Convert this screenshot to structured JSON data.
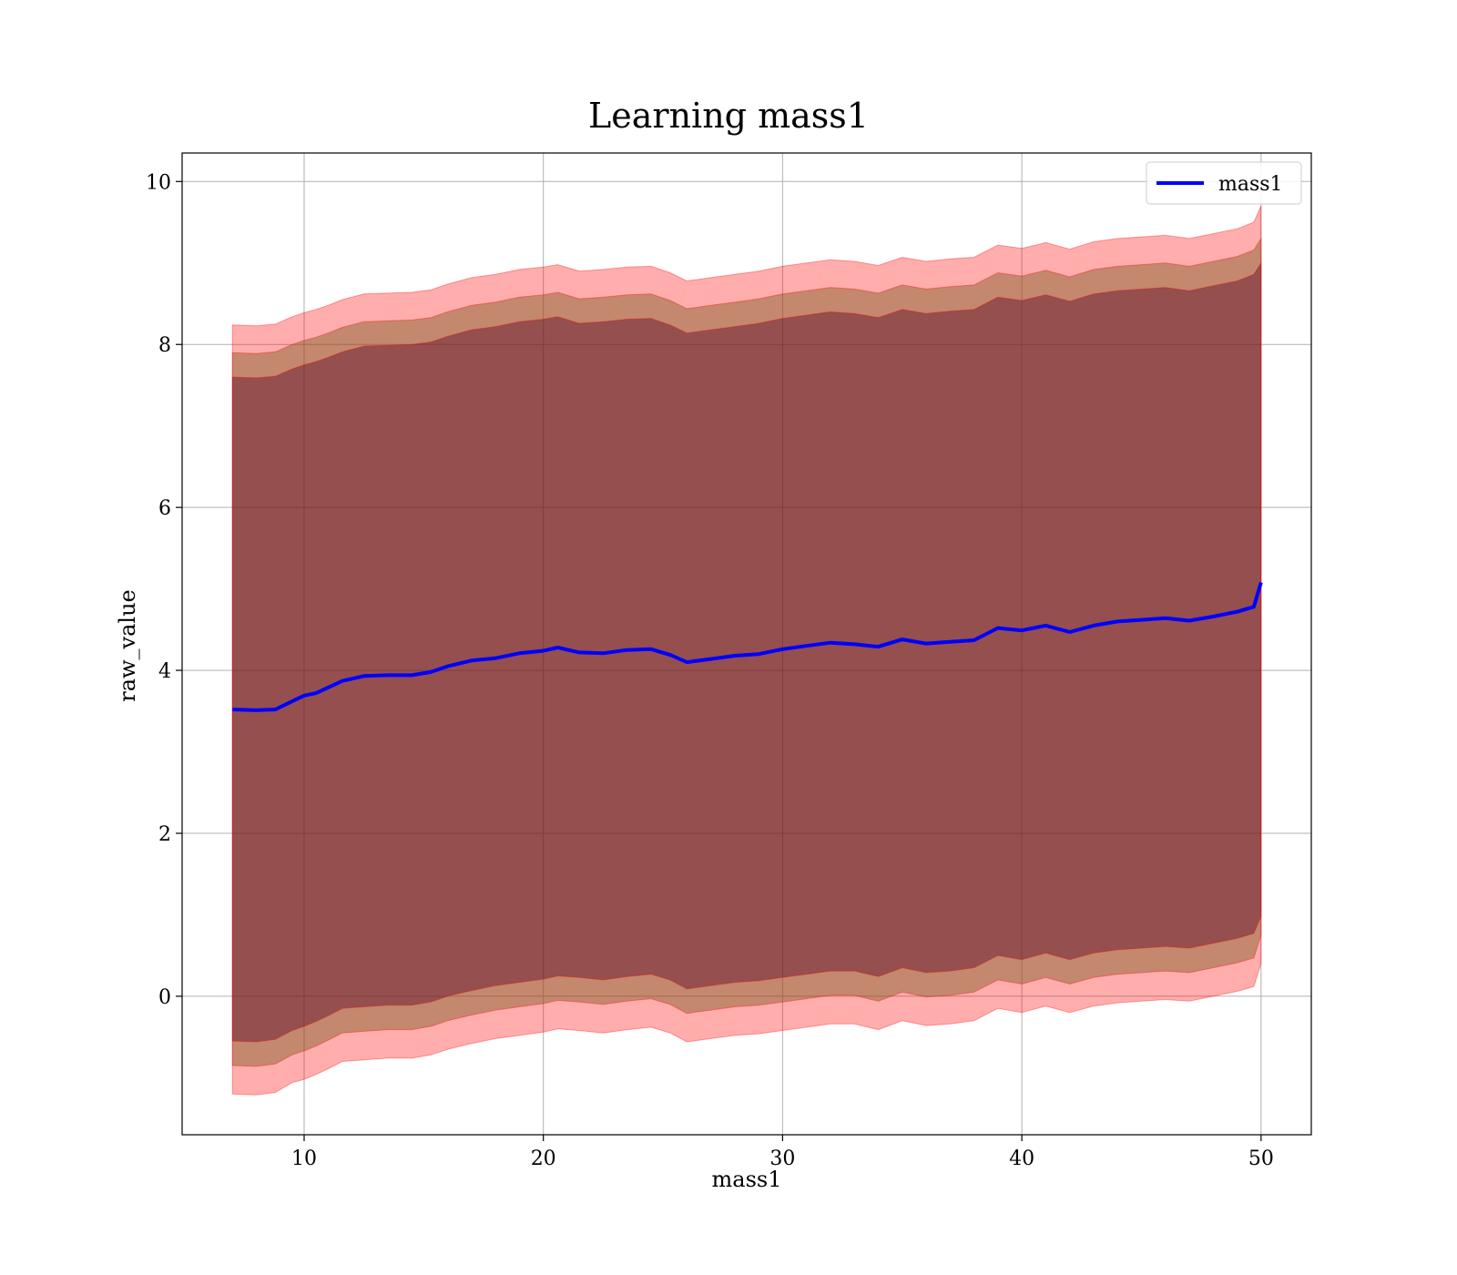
{
  "chart_data": {
    "type": "area",
    "title": "Learning mass1",
    "xlabel": "mass1",
    "ylabel": "raw_value",
    "xlim": [
      4.9,
      52.1
    ],
    "ylim": [
      -1.7,
      10.35
    ],
    "xticks": [
      10,
      20,
      30,
      40,
      50
    ],
    "yticks": [
      0,
      2,
      4,
      6,
      8,
      10
    ],
    "grid": true,
    "legend": {
      "position": "top-right",
      "entries": [
        "mass1"
      ]
    },
    "colors": {
      "line": "#0000ff",
      "band": "#ff0000",
      "band_overlap_dark": "#5a0a28",
      "band_overlap_mid": "#7a5a20"
    },
    "x": [
      7,
      8,
      8.8,
      9.5,
      10,
      10.5,
      11,
      11.6,
      12.5,
      13.5,
      14.5,
      15.3,
      16,
      17,
      18,
      19,
      20,
      20.6,
      21.5,
      22.5,
      23.5,
      24.5,
      25.3,
      26,
      27,
      28,
      29,
      30,
      31,
      32,
      33,
      34,
      35,
      36,
      37,
      38,
      39,
      40,
      41,
      42,
      43,
      44,
      45,
      46,
      47,
      48,
      49,
      49.7,
      50
    ],
    "series": [
      {
        "name": "mass1",
        "values": [
          3.52,
          3.51,
          3.52,
          3.62,
          3.69,
          3.72,
          3.79,
          3.87,
          3.93,
          3.94,
          3.94,
          3.98,
          4.05,
          4.12,
          4.15,
          4.21,
          4.24,
          4.28,
          4.22,
          4.21,
          4.25,
          4.26,
          4.19,
          4.1,
          4.14,
          4.18,
          4.2,
          4.26,
          4.3,
          4.34,
          4.32,
          4.29,
          4.38,
          4.33,
          4.35,
          4.37,
          4.52,
          4.49,
          4.55,
          4.47,
          4.55,
          4.6,
          4.62,
          4.64,
          4.61,
          4.66,
          4.72,
          4.78,
          5.08
        ]
      }
    ],
    "bands": [
      {
        "lower": [
          -1.2,
          -1.21,
          -1.18,
          -1.06,
          -1.02,
          -0.96,
          -0.89,
          -0.8,
          -0.78,
          -0.76,
          -0.76,
          -0.72,
          -0.65,
          -0.58,
          -0.52,
          -0.48,
          -0.44,
          -0.4,
          -0.42,
          -0.45,
          -0.41,
          -0.38,
          -0.45,
          -0.56,
          -0.52,
          -0.48,
          -0.46,
          -0.42,
          -0.38,
          -0.34,
          -0.34,
          -0.41,
          -0.3,
          -0.36,
          -0.34,
          -0.3,
          -0.15,
          -0.2,
          -0.12,
          -0.2,
          -0.12,
          -0.08,
          -0.06,
          -0.04,
          -0.06,
          0,
          0.06,
          0.12,
          0.4
        ],
        "upper": [
          8.24,
          8.23,
          8.25,
          8.34,
          8.39,
          8.43,
          8.48,
          8.55,
          8.62,
          8.63,
          8.64,
          8.67,
          8.74,
          8.82,
          8.86,
          8.92,
          8.95,
          8.98,
          8.9,
          8.92,
          8.95,
          8.96,
          8.88,
          8.78,
          8.82,
          8.86,
          8.9,
          8.96,
          9.0,
          9.04,
          9.02,
          8.97,
          9.07,
          9.02,
          9.05,
          9.07,
          9.22,
          9.18,
          9.25,
          9.17,
          9.26,
          9.3,
          9.32,
          9.34,
          9.3,
          9.36,
          9.42,
          9.5,
          9.7
        ]
      },
      {
        "lower": [
          -0.85,
          -0.86,
          -0.83,
          -0.72,
          -0.67,
          -0.61,
          -0.54,
          -0.45,
          -0.43,
          -0.41,
          -0.41,
          -0.37,
          -0.3,
          -0.23,
          -0.17,
          -0.13,
          -0.09,
          -0.05,
          -0.07,
          -0.1,
          -0.06,
          -0.03,
          -0.1,
          -0.21,
          -0.17,
          -0.13,
          -0.11,
          -0.07,
          -0.03,
          0.01,
          0.01,
          -0.06,
          0.05,
          -0.01,
          0.01,
          0.05,
          0.2,
          0.15,
          0.23,
          0.15,
          0.23,
          0.27,
          0.29,
          0.31,
          0.29,
          0.35,
          0.41,
          0.47,
          0.75
        ],
        "upper": [
          7.9,
          7.89,
          7.91,
          8.0,
          8.05,
          8.09,
          8.14,
          8.21,
          8.28,
          8.29,
          8.3,
          8.33,
          8.4,
          8.48,
          8.52,
          8.58,
          8.61,
          8.64,
          8.56,
          8.58,
          8.61,
          8.62,
          8.54,
          8.44,
          8.48,
          8.52,
          8.56,
          8.62,
          8.66,
          8.7,
          8.68,
          8.63,
          8.73,
          8.68,
          8.71,
          8.73,
          8.88,
          8.84,
          8.91,
          8.83,
          8.92,
          8.96,
          8.98,
          9.0,
          8.96,
          9.02,
          9.08,
          9.16,
          9.3
        ]
      },
      {
        "lower": [
          -0.55,
          -0.56,
          -0.53,
          -0.42,
          -0.37,
          -0.31,
          -0.24,
          -0.15,
          -0.13,
          -0.11,
          -0.11,
          -0.07,
          0.0,
          0.07,
          0.13,
          0.17,
          0.21,
          0.25,
          0.23,
          0.2,
          0.24,
          0.27,
          0.2,
          0.09,
          0.13,
          0.17,
          0.19,
          0.23,
          0.27,
          0.31,
          0.31,
          0.24,
          0.35,
          0.29,
          0.31,
          0.35,
          0.5,
          0.45,
          0.53,
          0.45,
          0.53,
          0.57,
          0.59,
          0.61,
          0.59,
          0.65,
          0.71,
          0.77,
          0.98
        ],
        "upper": [
          7.6,
          7.59,
          7.61,
          7.7,
          7.75,
          7.79,
          7.84,
          7.91,
          7.98,
          7.99,
          8.0,
          8.03,
          8.1,
          8.18,
          8.22,
          8.28,
          8.31,
          8.34,
          8.26,
          8.28,
          8.31,
          8.32,
          8.24,
          8.14,
          8.18,
          8.22,
          8.26,
          8.32,
          8.36,
          8.4,
          8.38,
          8.33,
          8.43,
          8.38,
          8.41,
          8.43,
          8.58,
          8.54,
          8.61,
          8.53,
          8.62,
          8.66,
          8.68,
          8.7,
          8.66,
          8.72,
          8.78,
          8.86,
          9.0
        ]
      }
    ]
  }
}
